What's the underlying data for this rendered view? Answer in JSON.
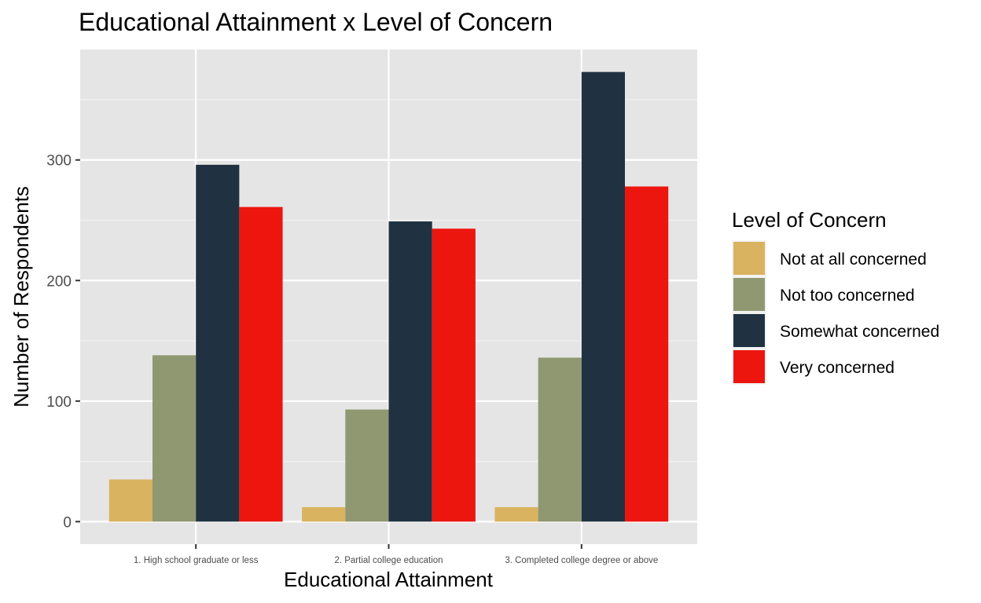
{
  "chart_data": {
    "type": "bar",
    "title": "Educational Attainment x Level of Concern",
    "xlabel": "Educational Attainment",
    "ylabel": "Number of Respondents",
    "categories": [
      "1. High school graduate or less",
      "2. Partial college education",
      "3. Completed college degree or above"
    ],
    "series": [
      {
        "name": "Not at all concerned",
        "color": "#D9B35F",
        "values": [
          35,
          12,
          12
        ]
      },
      {
        "name": "Not too concerned",
        "color": "#8F9870",
        "values": [
          138,
          93,
          136
        ]
      },
      {
        "name": "Somewhat concerned",
        "color": "#203241",
        "values": [
          296,
          249,
          373
        ]
      },
      {
        "name": "Very concerned",
        "color": "#EC160F",
        "values": [
          261,
          243,
          278
        ]
      }
    ],
    "ylim": [
      -18.65,
      391.65
    ],
    "yticks": [
      0,
      100,
      200,
      300
    ],
    "grid": true,
    "legend": {
      "title": "Level of Concern",
      "position": "right"
    }
  }
}
